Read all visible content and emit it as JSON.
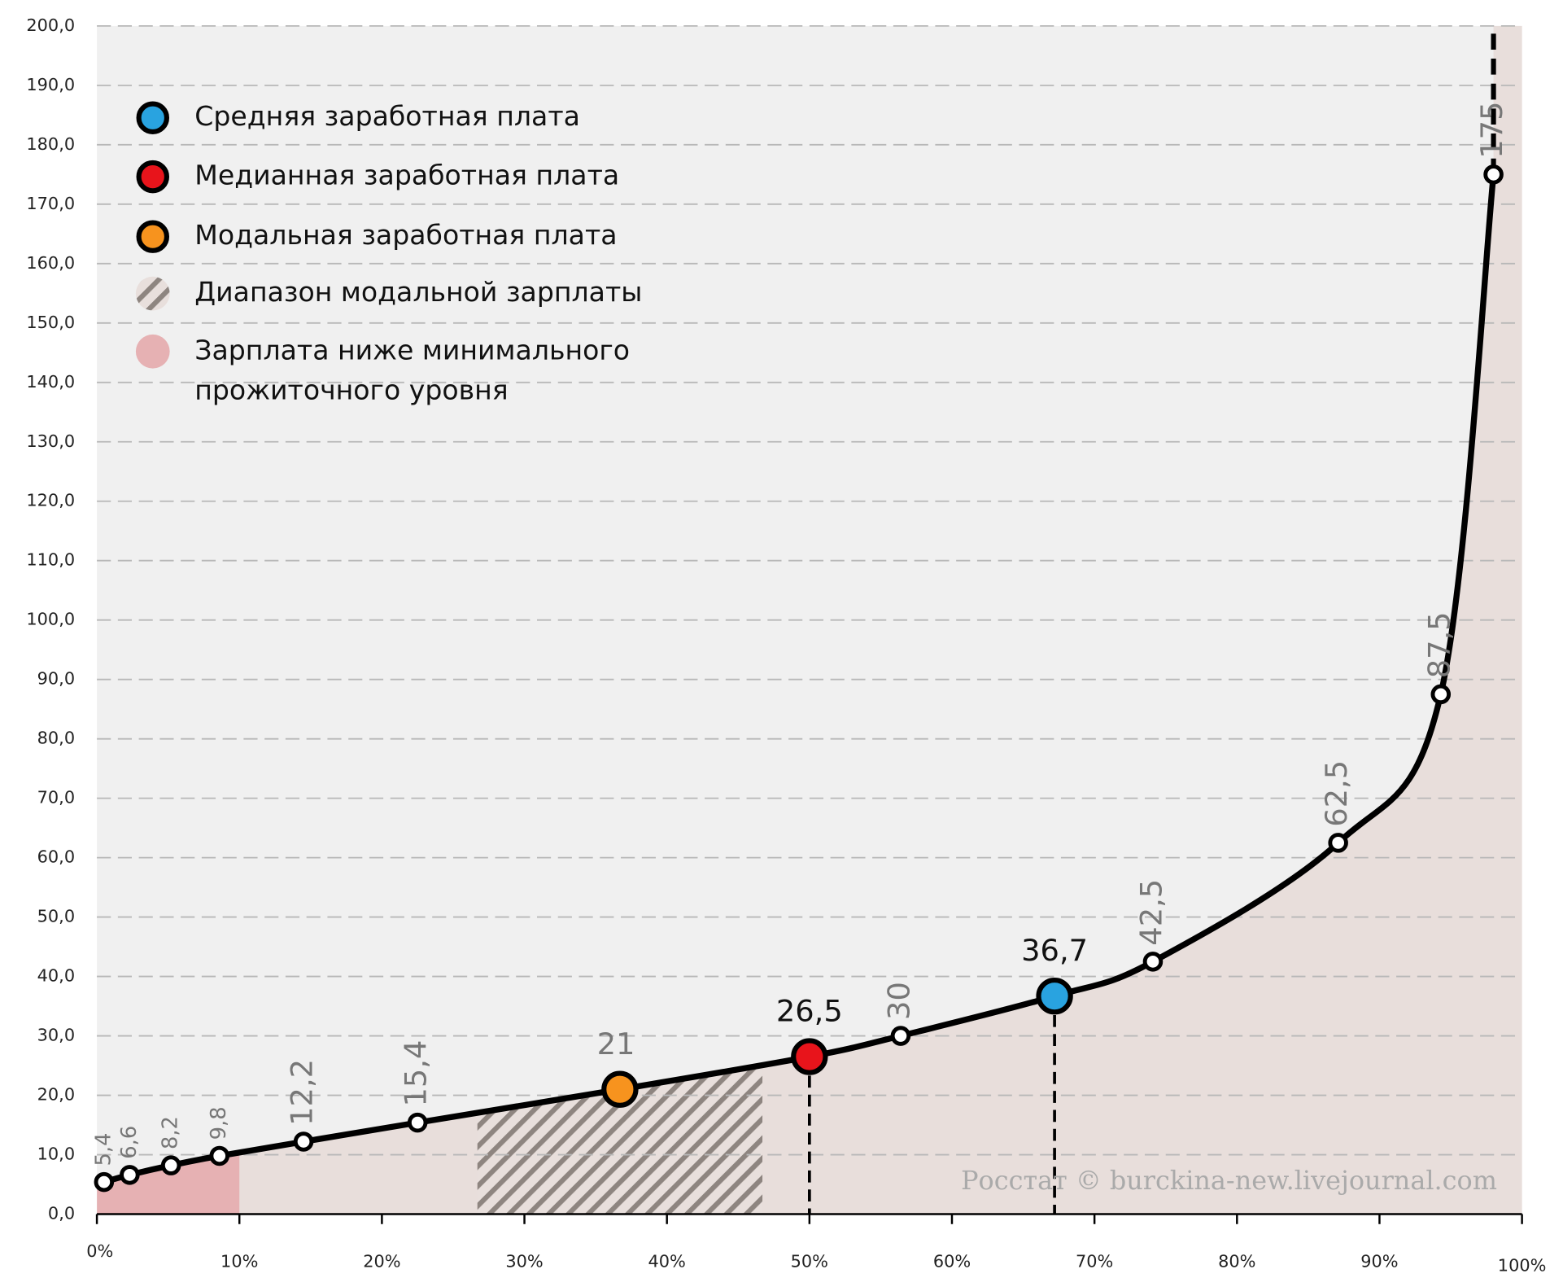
{
  "chart_data": {
    "type": "line",
    "x": [
      0.5,
      2.3,
      5.2,
      8.6,
      14.5,
      22.5,
      36.7,
      50,
      56.4,
      67.2,
      74.1,
      87.1,
      94.3,
      98.0
    ],
    "series": [
      {
        "name": "Заработная плата",
        "color": "#000000",
        "values": [
          5.4,
          6.6,
          8.2,
          9.8,
          12.2,
          15.4,
          21,
          26.5,
          30,
          36.7,
          42.5,
          62.5,
          87.5,
          175
        ],
        "value_labels": [
          "5,4",
          "6,6",
          "8,2",
          "9,8",
          "12,2",
          "15,4",
          "21",
          "26,5",
          "30",
          "36,7",
          "42,5",
          "62,5",
          "87,5",
          "175"
        ]
      }
    ],
    "highlights": [
      {
        "name": "Средняя заработная плата",
        "color": "#29a3e0",
        "point": 9
      },
      {
        "name": "Медианная заработная плата",
        "color": "#e8141b",
        "point": 7
      },
      {
        "name": "Модальная заработная плата",
        "color": "#f7931e",
        "point": 6
      }
    ],
    "modal_range": {
      "name": "Диапазон модальной зарплаты",
      "x": [
        26.7,
        46.7
      ]
    },
    "below_minimum": {
      "name": [
        "Зарплата ниже минимального",
        "прожиточного уровня"
      ],
      "color": "#e6b1b3",
      "x": [
        0,
        10
      ]
    },
    "xlim": [
      0,
      100
    ],
    "ylim": [
      0,
      200
    ],
    "xticks": [
      {
        "value": 0,
        "label": "0%"
      },
      {
        "value": 10,
        "label": "10%"
      },
      {
        "value": 20,
        "label": "20%"
      },
      {
        "value": 30,
        "label": "30%"
      },
      {
        "value": 40,
        "label": "40%"
      },
      {
        "value": 50,
        "label": "50%"
      },
      {
        "value": 60,
        "label": "60%"
      },
      {
        "value": 70,
        "label": "70%"
      },
      {
        "value": 80,
        "label": "80%"
      },
      {
        "value": 90,
        "label": "90%"
      },
      {
        "value": 100,
        "label": "100%"
      }
    ],
    "yticks": [
      {
        "value": 0,
        "label": "0,0"
      },
      {
        "value": 10,
        "label": "10,0"
      },
      {
        "value": 20,
        "label": "20,0"
      },
      {
        "value": 30,
        "label": "30,0"
      },
      {
        "value": 40,
        "label": "40,0"
      },
      {
        "value": 50,
        "label": "50,0"
      },
      {
        "value": 60,
        "label": "60,0"
      },
      {
        "value": 70,
        "label": "70,0"
      },
      {
        "value": 80,
        "label": "80,0"
      },
      {
        "value": 90,
        "label": "90,0"
      },
      {
        "value": 100,
        "label": "100,0"
      },
      {
        "value": 110,
        "label": "110,0"
      },
      {
        "value": 120,
        "label": "120,0"
      },
      {
        "value": 130,
        "label": "130,0"
      },
      {
        "value": 140,
        "label": "140,0"
      },
      {
        "value": 150,
        "label": "150,0"
      },
      {
        "value": 160,
        "label": "160,0"
      },
      {
        "value": 170,
        "label": "170,0"
      },
      {
        "value": 180,
        "label": "180,0"
      },
      {
        "value": 190,
        "label": "190,0"
      },
      {
        "value": 200,
        "label": "200,0"
      }
    ],
    "grid": true,
    "source": "Росстат © burckina-new.livejournal.com"
  }
}
